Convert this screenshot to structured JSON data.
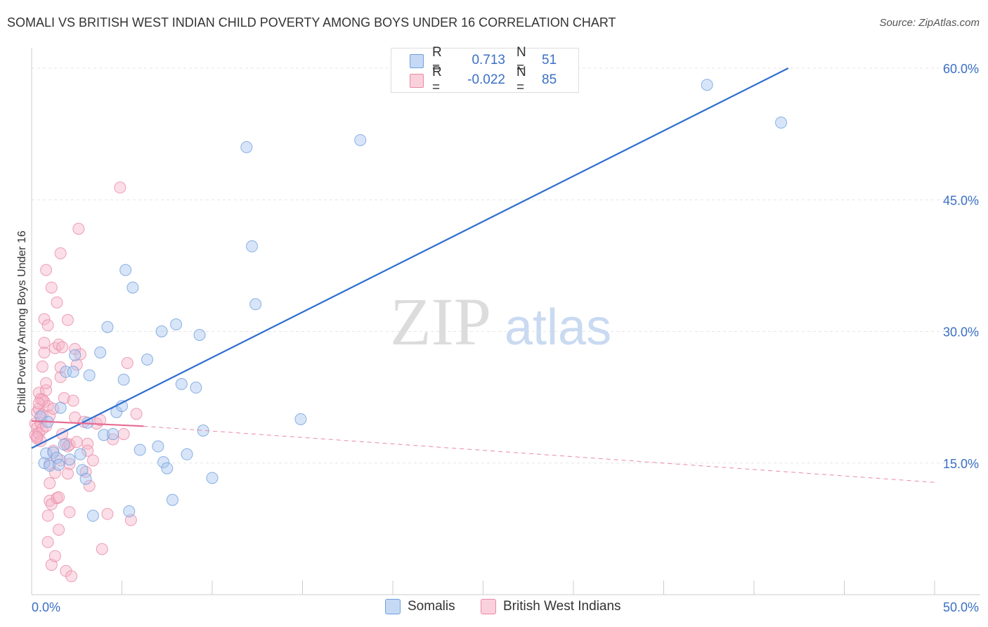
{
  "chart_data": {
    "type": "scatter",
    "title": "SOMALI VS BRITISH WEST INDIAN CHILD POVERTY AMONG BOYS UNDER 16 CORRELATION CHART",
    "source": "Source: ZipAtlas.com",
    "ylabel": "Child Poverty Among Boys Under 16",
    "xlim": [
      0,
      50
    ],
    "ylim": [
      0,
      62
    ],
    "y_ticks": [
      15,
      30,
      45,
      60
    ],
    "y_tick_labels": [
      "15.0%",
      "30.0%",
      "45.0%",
      "60.0%"
    ],
    "x_tick_labels": [
      "0.0%",
      "50.0%"
    ],
    "watermark": {
      "zip": "ZIP",
      "atlas": "atlas"
    },
    "legend": {
      "r_label": "R =",
      "n_label": "N =",
      "entries": [
        {
          "name": "Somalis",
          "r": "0.713",
          "n": "51",
          "color": "#a8c6f0"
        },
        {
          "name": "British West Indians",
          "r": "-0.022",
          "n": "85",
          "color": "#f7b6c9"
        }
      ]
    },
    "series": [
      {
        "name": "Somalis",
        "color": "#a8c6f0",
        "stroke": "#6f9fdc",
        "trend_color": "#2f6fcf",
        "trend": {
          "x0": 0,
          "y0": 16.7,
          "x1": 41.9,
          "y1": 60.0
        },
        "points": [
          [
            0.5,
            20.3
          ],
          [
            0.7,
            15.0
          ],
          [
            0.8,
            16.1
          ],
          [
            1.0,
            14.7
          ],
          [
            1.2,
            16.2
          ],
          [
            1.4,
            15.6
          ],
          [
            1.6,
            21.3
          ],
          [
            1.8,
            17.1
          ],
          [
            1.9,
            25.4
          ],
          [
            2.1,
            15.4
          ],
          [
            2.3,
            25.4
          ],
          [
            2.4,
            27.3
          ],
          [
            2.7,
            16.0
          ],
          [
            2.8,
            14.2
          ],
          [
            3.0,
            13.2
          ],
          [
            3.2,
            25.0
          ],
          [
            3.4,
            9.0
          ],
          [
            3.8,
            27.6
          ],
          [
            4.0,
            18.2
          ],
          [
            4.2,
            30.5
          ],
          [
            4.5,
            18.3
          ],
          [
            4.7,
            20.8
          ],
          [
            5.0,
            21.5
          ],
          [
            5.1,
            24.5
          ],
          [
            5.2,
            37.0
          ],
          [
            5.4,
            9.5
          ],
          [
            5.6,
            35.0
          ],
          [
            6.0,
            16.5
          ],
          [
            6.4,
            26.8
          ],
          [
            7.0,
            16.9
          ],
          [
            7.2,
            30.0
          ],
          [
            7.3,
            15.1
          ],
          [
            7.5,
            14.4
          ],
          [
            7.8,
            10.8
          ],
          [
            8.0,
            30.8
          ],
          [
            8.3,
            24.0
          ],
          [
            8.6,
            16.0
          ],
          [
            9.1,
            23.6
          ],
          [
            9.3,
            29.6
          ],
          [
            9.5,
            18.7
          ],
          [
            10.0,
            13.3
          ],
          [
            11.9,
            51.0
          ],
          [
            12.2,
            39.7
          ],
          [
            12.4,
            33.1
          ],
          [
            14.9,
            20.0
          ],
          [
            18.2,
            51.8
          ],
          [
            37.4,
            58.1
          ],
          [
            41.5,
            53.8
          ],
          [
            3.1,
            19.6
          ],
          [
            0.9,
            19.7
          ],
          [
            1.5,
            14.8
          ]
        ]
      },
      {
        "name": "British West Indians",
        "color": "#f7b6c9",
        "stroke": "#e88aa6",
        "trend_color": "#e86a92",
        "trend": {
          "x0": 0,
          "y0": 19.8,
          "x1": 6.2,
          "y1": 19.2
        },
        "trend_ext": {
          "x0": 6.2,
          "y0": 19.2,
          "x1": 50,
          "y1": 12.8
        },
        "points": [
          [
            0.2,
            19.5
          ],
          [
            0.2,
            18.2
          ],
          [
            0.3,
            20.8
          ],
          [
            0.3,
            17.8
          ],
          [
            0.3,
            19.0
          ],
          [
            0.4,
            21.2
          ],
          [
            0.4,
            18.4
          ],
          [
            0.4,
            23.0
          ],
          [
            0.5,
            17.5
          ],
          [
            0.5,
            22.3
          ],
          [
            0.5,
            19.6
          ],
          [
            0.6,
            20.5
          ],
          [
            0.6,
            18.9
          ],
          [
            0.6,
            26.0
          ],
          [
            0.7,
            22.0
          ],
          [
            0.7,
            27.6
          ],
          [
            0.7,
            31.4
          ],
          [
            0.7,
            28.7
          ],
          [
            0.8,
            23.3
          ],
          [
            0.8,
            24.1
          ],
          [
            0.8,
            37.0
          ],
          [
            0.8,
            19.2
          ],
          [
            0.9,
            9.0
          ],
          [
            0.9,
            6.0
          ],
          [
            0.9,
            21.5
          ],
          [
            0.9,
            30.7
          ],
          [
            1.0,
            20.4
          ],
          [
            1.0,
            14.9
          ],
          [
            1.0,
            12.7
          ],
          [
            1.0,
            10.7
          ],
          [
            1.1,
            10.3
          ],
          [
            1.1,
            3.4
          ],
          [
            1.1,
            35.0
          ],
          [
            1.2,
            21.2
          ],
          [
            1.2,
            16.4
          ],
          [
            1.3,
            4.4
          ],
          [
            1.3,
            13.9
          ],
          [
            1.3,
            28.1
          ],
          [
            1.4,
            11.0
          ],
          [
            1.4,
            33.3
          ],
          [
            1.5,
            7.4
          ],
          [
            1.5,
            11.1
          ],
          [
            1.5,
            28.5
          ],
          [
            1.6,
            38.9
          ],
          [
            1.6,
            24.8
          ],
          [
            1.6,
            25.9
          ],
          [
            1.7,
            18.3
          ],
          [
            1.7,
            28.2
          ],
          [
            1.8,
            22.4
          ],
          [
            1.9,
            17.2
          ],
          [
            1.9,
            2.7
          ],
          [
            2.0,
            31.3
          ],
          [
            2.0,
            16.9
          ],
          [
            2.0,
            13.8
          ],
          [
            2.1,
            9.4
          ],
          [
            2.1,
            17.1
          ],
          [
            2.1,
            14.9
          ],
          [
            2.2,
            2.1
          ],
          [
            2.3,
            22.1
          ],
          [
            2.4,
            28.0
          ],
          [
            2.4,
            20.2
          ],
          [
            2.5,
            26.2
          ],
          [
            2.5,
            17.4
          ],
          [
            2.6,
            41.7
          ],
          [
            2.7,
            27.4
          ],
          [
            2.9,
            19.7
          ],
          [
            3.0,
            14.0
          ],
          [
            3.1,
            17.2
          ],
          [
            3.2,
            12.4
          ],
          [
            3.4,
            15.3
          ],
          [
            3.6,
            19.5
          ],
          [
            3.8,
            19.9
          ],
          [
            3.9,
            5.2
          ],
          [
            4.2,
            9.2
          ],
          [
            4.5,
            17.7
          ],
          [
            4.9,
            46.4
          ],
          [
            5.1,
            18.3
          ],
          [
            5.3,
            26.4
          ],
          [
            5.5,
            8.5
          ],
          [
            5.8,
            20.6
          ],
          [
            3.1,
            16.4
          ],
          [
            1.6,
            15.3
          ],
          [
            0.3,
            18.0
          ],
          [
            0.6,
            22.2
          ],
          [
            0.4,
            21.8
          ]
        ]
      }
    ]
  }
}
